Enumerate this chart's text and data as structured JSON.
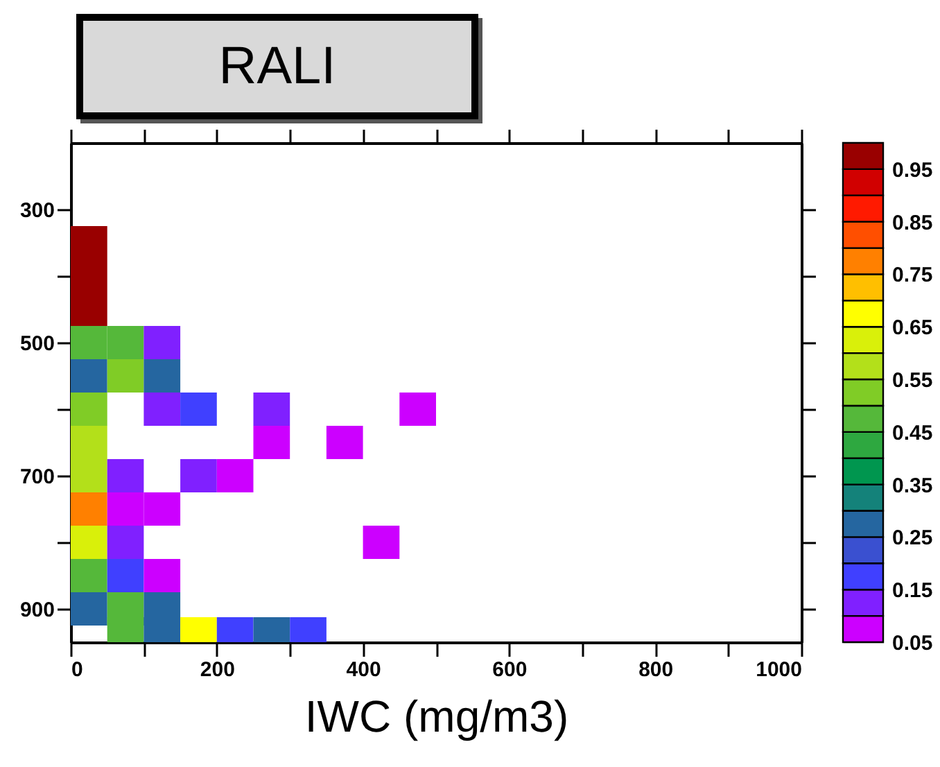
{
  "chart_data": {
    "type": "scatter",
    "title": "RALI",
    "xlabel": "IWC (mg/m3)",
    "marker": "square",
    "series": [
      {
        "x": [
          25,
          25,
          25,
          25,
          75,
          125,
          25,
          75,
          125,
          25,
          125,
          175,
          275,
          475,
          25,
          275,
          375,
          25,
          75,
          175,
          225,
          25,
          75,
          125,
          25,
          75,
          425,
          25,
          75,
          125,
          25,
          75,
          125,
          75,
          125,
          175,
          225,
          275,
          325
        ],
        "values": [
          350,
          400,
          450,
          500,
          500,
          500,
          550,
          550,
          550,
          600,
          600,
          600,
          600,
          600,
          650,
          650,
          650,
          700,
          700,
          700,
          700,
          750,
          750,
          750,
          800,
          800,
          800,
          850,
          850,
          850,
          900,
          900,
          900,
          937.5,
          937.5,
          937.5,
          937.5,
          937.5,
          937.5
        ],
        "cvalues": [
          0.97,
          0.97,
          0.97,
          0.47,
          0.47,
          0.12,
          0.27,
          0.52,
          0.27,
          0.52,
          0.12,
          0.17,
          0.12,
          0.07,
          0.57,
          0.07,
          0.07,
          0.57,
          0.12,
          0.12,
          0.07,
          0.77,
          0.07,
          0.07,
          0.62,
          0.12,
          0.07,
          0.47,
          0.17,
          0.07,
          0.27,
          0.47,
          0.27,
          0.47,
          0.27,
          0.67,
          0.17,
          0.27,
          0.17
        ]
      }
    ],
    "clim": [
      0.05,
      1.0
    ],
    "cticks": [
      0.05,
      0.15,
      0.25,
      0.35,
      0.45,
      0.55,
      0.65,
      0.75,
      0.85,
      0.95
    ],
    "xlim": [
      0,
      1000
    ],
    "xticks": [
      0,
      {
        "value": 100,
        "label": null
      },
      200,
      {
        "value": 300,
        "label": null
      },
      400,
      {
        "value": 500,
        "label": null
      },
      600,
      {
        "value": 700,
        "label": null
      },
      800,
      {
        "value": 900,
        "label": null
      },
      1000
    ],
    "ylim": [
      950,
      200
    ],
    "yticks": [
      300,
      {
        "value": 400,
        "label": null
      },
      500,
      {
        "value": 600,
        "label": null
      },
      700,
      {
        "value": 800,
        "label": null
      },
      900
    ]
  }
}
